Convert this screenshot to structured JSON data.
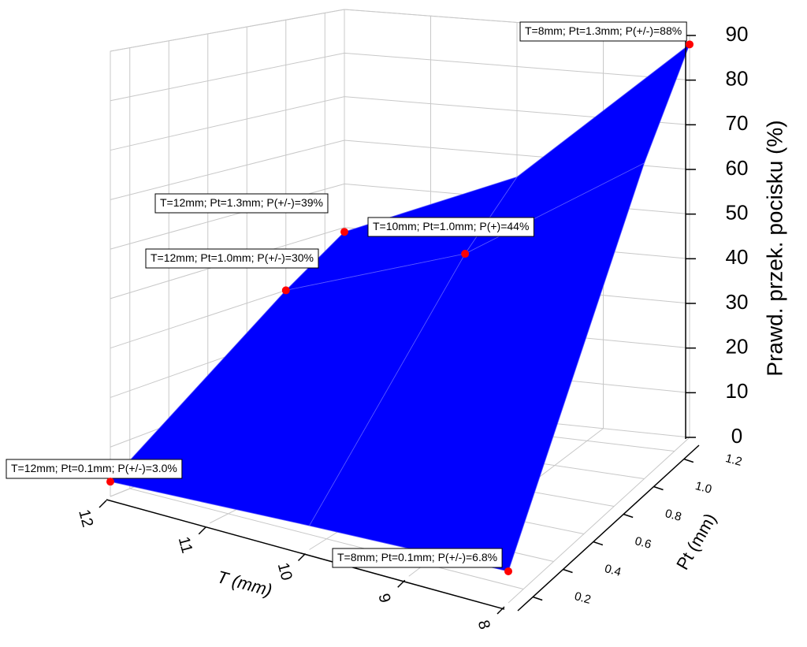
{
  "chart_data": {
    "type": "surface",
    "x_label": "T (mm)",
    "y_label": "Pt (mm)",
    "z_label": "Prawd. przek. pocisku (%)",
    "x": [
      8,
      10,
      12
    ],
    "y": [
      0.1,
      1.0,
      1.3
    ],
    "z": [
      [
        6.8,
        70,
        88
      ],
      [
        5,
        44,
        55
      ],
      [
        3,
        30,
        39
      ]
    ],
    "color": "#0000ff",
    "point_color": "#ff0000",
    "grid": true,
    "xlim": [
      8,
      12
    ],
    "xticks": [
      8,
      9,
      10,
      11,
      12
    ],
    "ylim": [
      0.1,
      1.3
    ],
    "yticks": [
      0.2,
      0.4,
      0.6,
      0.8,
      {
        "value": 1,
        "label": "1.0"
      },
      1.2
    ],
    "zlim": [
      0,
      90
    ],
    "zticks": [
      0,
      10,
      20,
      30,
      40,
      50,
      60,
      70,
      80,
      90
    ],
    "points": [
      {
        "label": "T=8mm; Pt=1.3mm; P(+/-)=88%",
        "x": 8,
        "y": 1.3,
        "z": 88
      },
      {
        "label": "T=12mm; Pt=1.3mm; P(+/-)=39%",
        "x": 12,
        "y": 1.3,
        "z": 39
      },
      {
        "label": "T=10mm; Pt=1.0mm; P(+)=44%",
        "x": 10,
        "y": 1.0,
        "z": 44
      },
      {
        "label": "T=12mm; Pt=1.0mm; P(+/-)=30%",
        "x": 12,
        "y": 1.0,
        "z": 30
      },
      {
        "label": "T=12mm; Pt=0.1mm; P(+/-)=3.0%",
        "x": 12,
        "y": 0.1,
        "z": 3
      },
      {
        "label": "T=8mm; Pt=0.1mm; P(+/-)=6.8%",
        "x": 8,
        "y": 0.1,
        "z": 6.8
      }
    ]
  }
}
